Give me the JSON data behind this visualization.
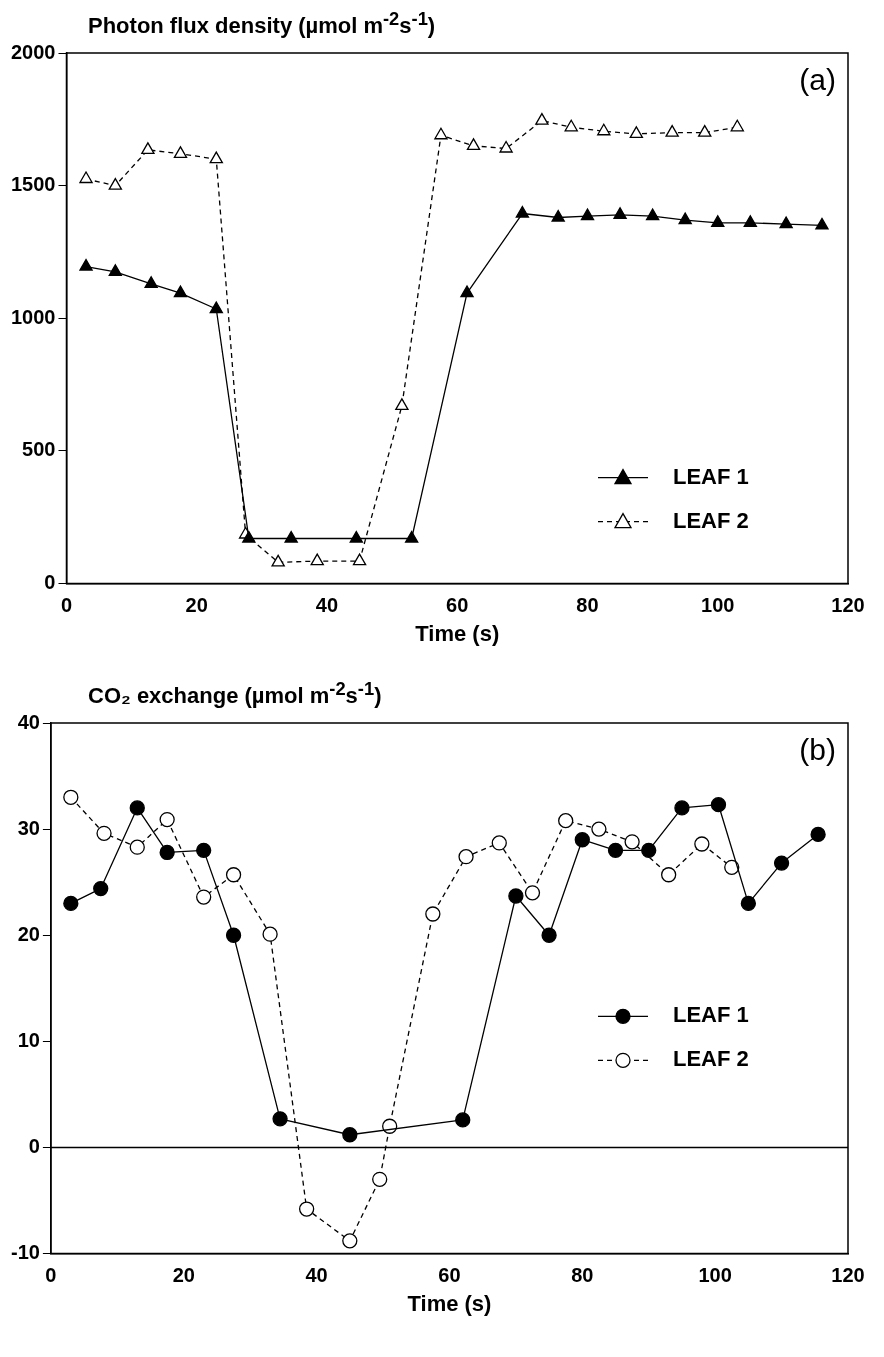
{
  "chart_data": [
    {
      "type": "line",
      "ylabel": "Photon flux density (µmol m$^{-2}$s$^{-1}$)",
      "xlabel": "Time (s)",
      "annotations": [
        "(a)"
      ],
      "xlim": [
        0,
        120
      ],
      "xticks": [
        0,
        20,
        40,
        60,
        80,
        100,
        120
      ],
      "ylim": [
        0,
        2000
      ],
      "yticks": [
        0,
        500,
        1000,
        1500,
        2000
      ],
      "grid": false,
      "legend": "bottom right",
      "marker": "triangle",
      "series": [
        {
          "name": "LEAF 1",
          "color": "#000000",
          "line_style": "solid",
          "x": [
            3,
            7.5,
            13,
            17.5,
            23,
            28,
            34.5,
            44.5,
            53,
            61.5,
            70,
            75.5,
            80,
            85,
            90,
            95,
            100,
            105,
            110.5,
            116
          ],
          "values": [
            1195,
            1175,
            1130,
            1095,
            1035,
            170,
            170,
            170,
            170,
            1095,
            1395,
            1380,
            1385,
            1390,
            1385,
            1370,
            1360,
            1360,
            1355,
            1350
          ]
        },
        {
          "name": "LEAF 2",
          "color": "#000000",
          "line_style": "dashed",
          "x": [
            3,
            7.5,
            12.5,
            17.5,
            23,
            27.5,
            32.5,
            38.5,
            45,
            51.5,
            57.5,
            62.5,
            67.5,
            73,
            77.5,
            82.5,
            87.5,
            93,
            98,
            103
          ],
          "values": [
            1525,
            1500,
            1635,
            1620,
            1600,
            185,
            80,
            85,
            85,
            670,
            1690,
            1650,
            1640,
            1745,
            1720,
            1705,
            1695,
            1700,
            1700,
            1720
          ]
        }
      ]
    },
    {
      "type": "line",
      "ylabel": "CO₂ exchange (µmol m$^{-2}$s$^{-1}$)",
      "xlabel": "Time (s)",
      "annotations": [
        "(b)"
      ],
      "xlim": [
        0,
        120
      ],
      "xticks": [
        0,
        20,
        40,
        60,
        80,
        100,
        120
      ],
      "ylim": [
        -10,
        40
      ],
      "yticks": [
        -10,
        0,
        10,
        20,
        30,
        40
      ],
      "grid": false,
      "legend": "right",
      "marker": "circle",
      "ref_lines": [
        {
          "axis": "y",
          "value": 0,
          "label": null,
          "color": "#000000"
        }
      ],
      "series": [
        {
          "name": "LEAF 1",
          "color": "#000000",
          "line_style": "solid",
          "x": [
            3,
            7.5,
            13,
            17.5,
            23,
            27.5,
            34.5,
            45,
            62,
            70,
            75,
            80,
            85,
            90,
            95,
            100.5,
            105,
            110,
            115.5
          ],
          "values": [
            23,
            24.4,
            32,
            27.8,
            28,
            20,
            2.7,
            1.2,
            2.6,
            23.7,
            20,
            29,
            28,
            28,
            32,
            32.3,
            23,
            26.8,
            29.5
          ]
        },
        {
          "name": "LEAF 2",
          "color": "#000000",
          "line_style": "dashed",
          "x": [
            3,
            8,
            13,
            17.5,
            23,
            27.5,
            33,
            38.5,
            45,
            49.5,
            51,
            57.5,
            62.5,
            67.5,
            72.5,
            77.5,
            82.5,
            87.5,
            93,
            98,
            102.5
          ],
          "values": [
            33,
            29.6,
            28.3,
            30.9,
            23.6,
            25.7,
            20.1,
            -5.8,
            -8.8,
            -3,
            2,
            22,
            27.4,
            28.7,
            24,
            30.8,
            30,
            28.8,
            25.7,
            28.6,
            26.4
          ]
        }
      ]
    }
  ]
}
